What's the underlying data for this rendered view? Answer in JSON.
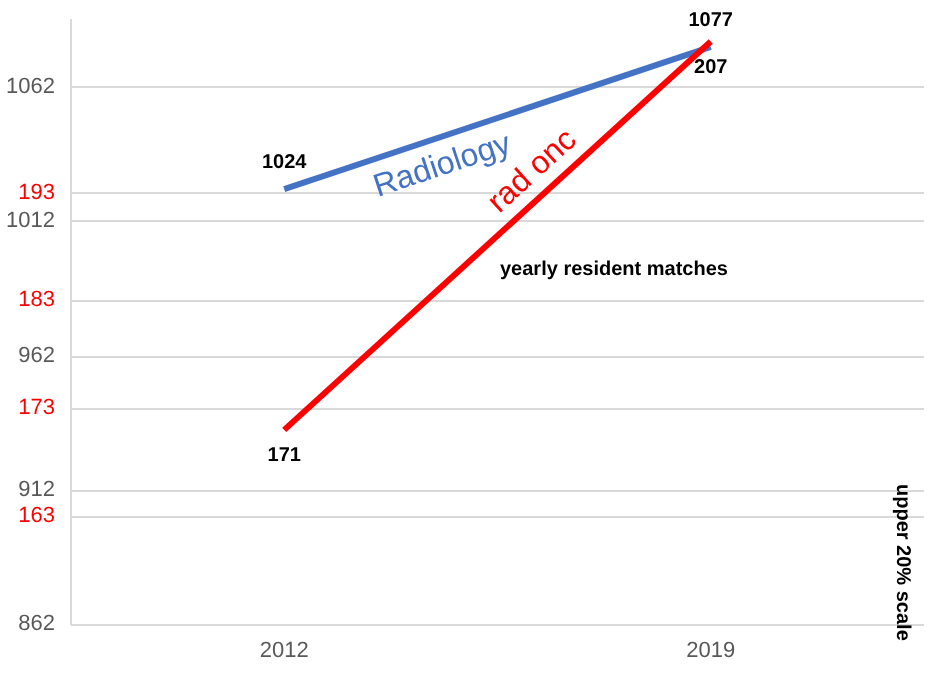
{
  "chart_data": {
    "type": "line",
    "categories": [
      "2012",
      "2019"
    ],
    "series": [
      {
        "name": "Radiology",
        "color": "#4472c4",
        "values": [
          1024,
          1077
        ]
      },
      {
        "name": "rad onc",
        "color": "#ff0000",
        "values": [
          171,
          207
        ],
        "axis": "y2"
      }
    ],
    "ylim": [
      862,
      1087
    ],
    "yticks": [
      862,
      912,
      962,
      1012,
      1062
    ],
    "y2lim": [
      153,
      209
    ],
    "y2ticks": [
      163,
      173,
      183,
      193
    ],
    "annotations": [
      "yearly resident matches",
      "upper 20% scale"
    ],
    "data_labels": true,
    "grid": true,
    "legend": false,
    "marker": "none",
    "line_style": "solid"
  }
}
